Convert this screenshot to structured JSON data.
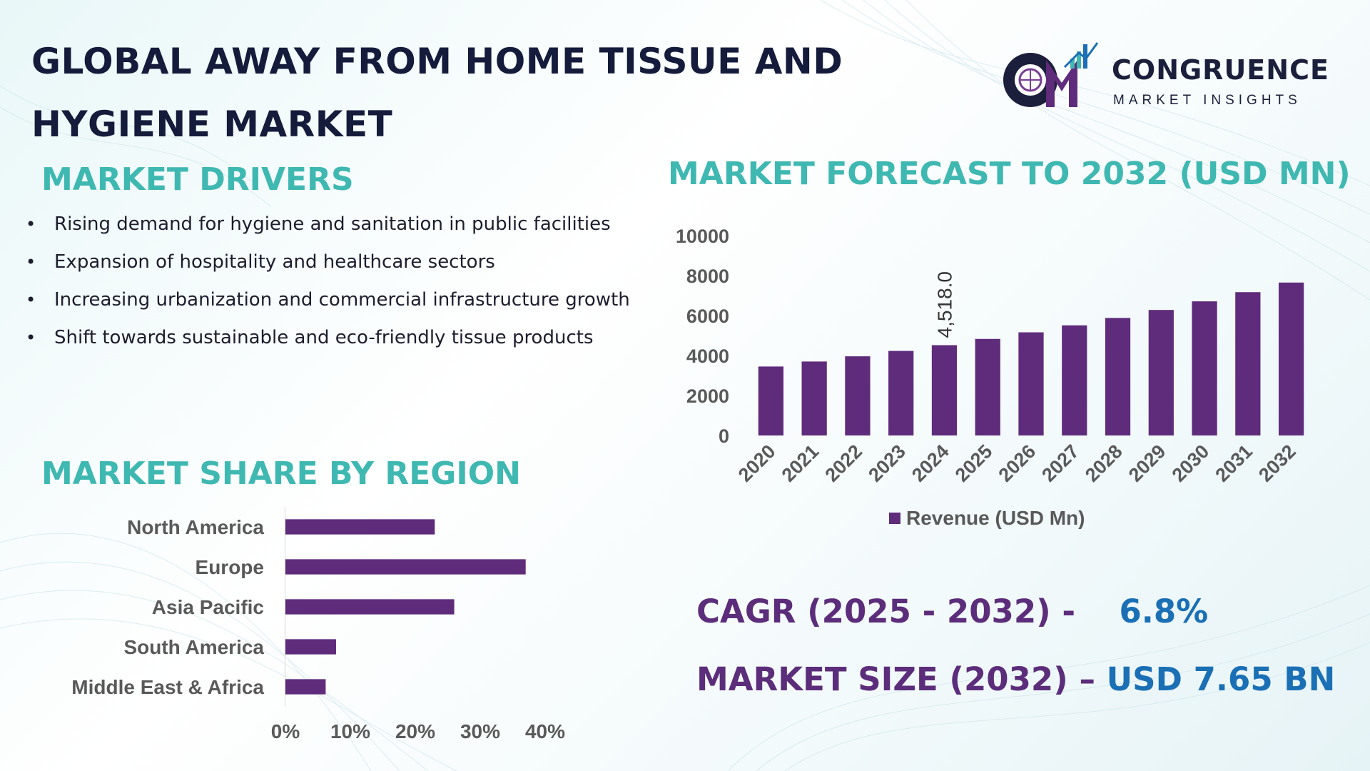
{
  "header": {
    "title": "GLOBAL AWAY FROM HOME TISSUE AND HYGIENE MARKET"
  },
  "logo": {
    "monogram": "CM",
    "name": "CONGRUENCE",
    "tagline": "MARKET INSIGHTS"
  },
  "drivers": {
    "title": "MARKET DRIVERS",
    "items": [
      "Rising demand for hygiene and sanitation in public facilities",
      "Expansion of hospitality and healthcare sectors",
      "Increasing urbanization and commercial infrastructure growth",
      "Shift towards sustainable and eco-friendly tissue products"
    ]
  },
  "forecast": {
    "title": "MARKET FORECAST TO 2032 (USD MN)"
  },
  "share": {
    "title": "MARKET SHARE BY REGION"
  },
  "kpis": {
    "cagr_label": "CAGR (2025 - 2032) -",
    "cagr_value": "6.8%",
    "size_label": "MARKET SIZE (2032) –",
    "size_value": "USD 7.65 BN"
  },
  "colors": {
    "bar": "#5f2c7c",
    "teal_heading": "#3fb8b1",
    "navy_title": "#141b3b",
    "kpi_label": "#5c2d7a",
    "kpi_value": "#1a6fb5",
    "axis_text": "#595959"
  },
  "chart_data": [
    {
      "type": "bar",
      "orientation": "vertical",
      "categories": [
        "2020",
        "2021",
        "2022",
        "2023",
        "2024",
        "2025",
        "2026",
        "2027",
        "2028",
        "2029",
        "2030",
        "2031",
        "2032"
      ],
      "series": [
        {
          "name": "Revenue (USD Mn)",
          "values": [
            3450,
            3700,
            3960,
            4230,
            4518,
            4830,
            5160,
            5510,
            5880,
            6280,
            6710,
            7170,
            7650
          ]
        }
      ],
      "data_labels": [
        {
          "category": "2024",
          "text": "4,518.0"
        }
      ],
      "yticks": [
        "0",
        "2000",
        "4000",
        "6000",
        "8000",
        "10000"
      ],
      "ylim": [
        0,
        10000
      ],
      "legend": "bottom",
      "grid": false
    },
    {
      "type": "bar",
      "orientation": "horizontal",
      "categories": [
        "North America",
        "Europe",
        "Asia Pacific",
        "South America",
        "Middle East & Africa"
      ],
      "values": [
        23,
        37,
        26,
        7.8,
        6.2
      ],
      "xticks": [
        "0%",
        "10%",
        "20%",
        "30%",
        "40%"
      ],
      "xlim": [
        0,
        40
      ],
      "grid": false
    }
  ]
}
